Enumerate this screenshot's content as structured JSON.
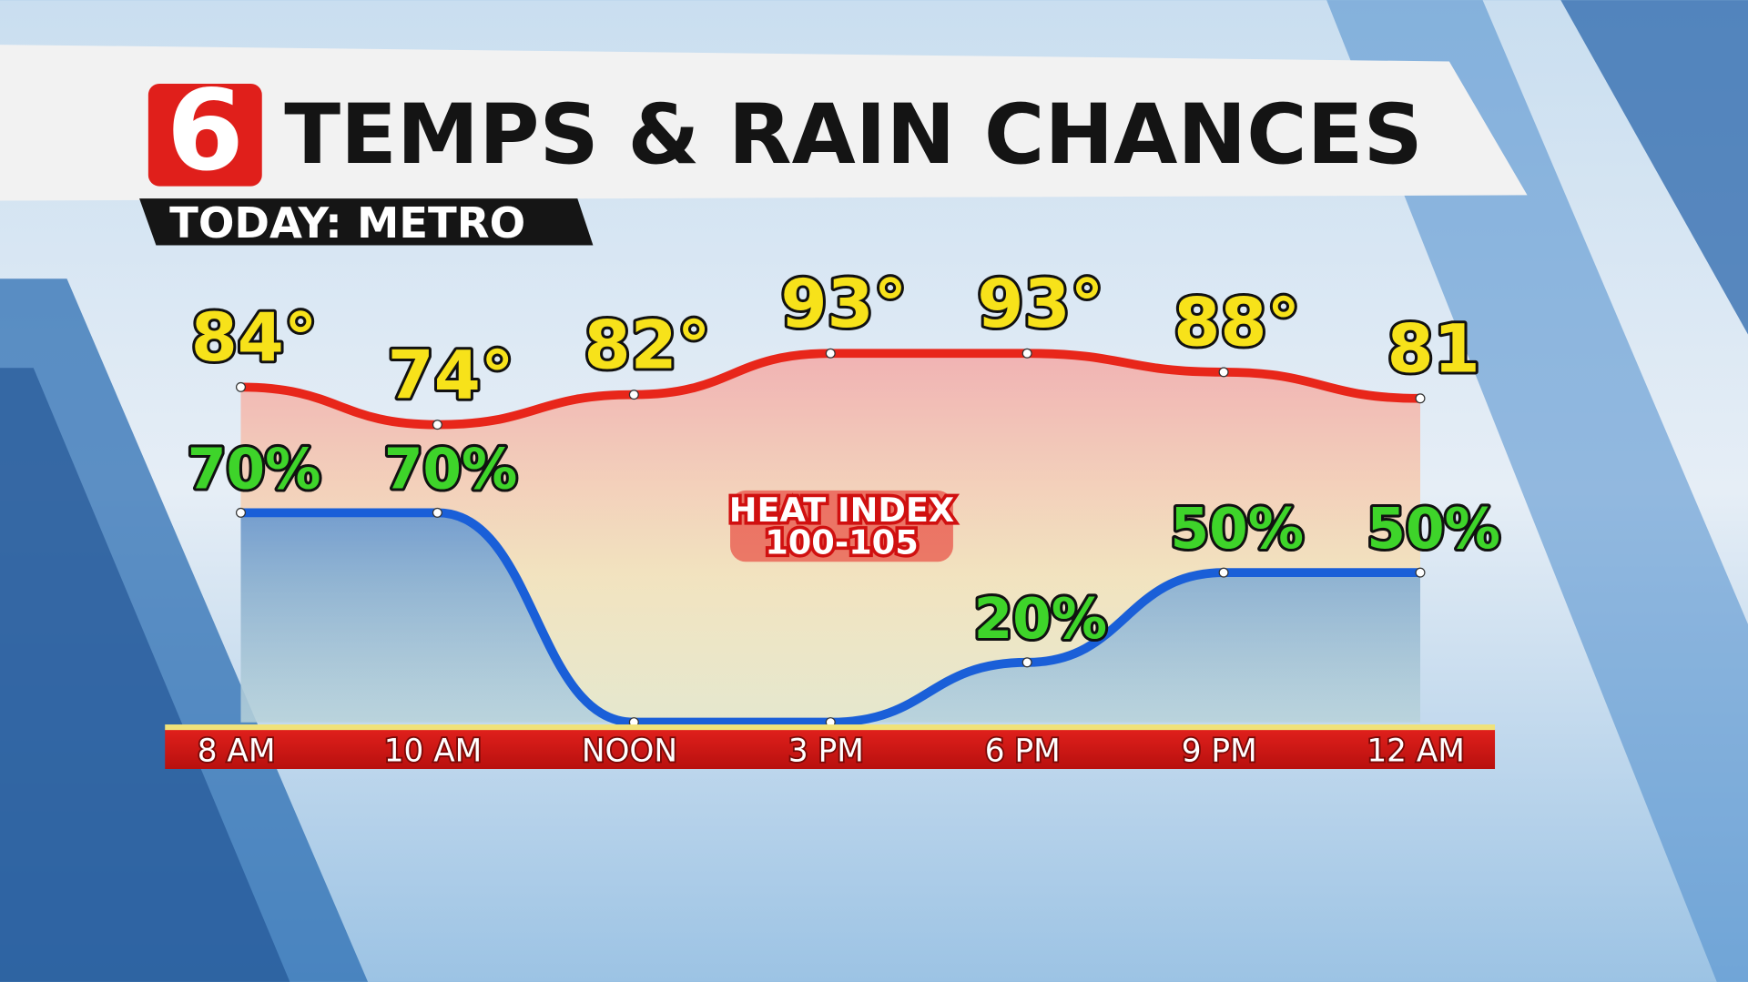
{
  "chart_data": {
    "type": "line",
    "logo": "6",
    "title": "TEMPS & RAIN CHANCES",
    "subtitle": "TODAY: METRO",
    "annotation": [
      "HEAT INDEX",
      "100-105"
    ],
    "categories": [
      "8 AM",
      "10 AM",
      "NOON",
      "3 PM",
      "6 PM",
      "9 PM",
      "12 AM"
    ],
    "series": [
      {
        "color": "#e8261a",
        "label_color": "#f7e21a",
        "values": [
          84,
          74,
          82,
          93,
          93,
          88,
          81
        ],
        "value_labels": [
          "84°",
          "74°",
          "82°",
          "93°",
          "93°",
          "88°",
          "81"
        ]
      },
      {
        "color": "#1a5fd8",
        "label_color": "#3ed42a",
        "values": [
          70,
          70,
          0,
          0,
          20,
          50,
          50
        ],
        "value_labels": [
          "70%",
          "70%",
          null,
          null,
          "20%",
          "50%",
          "50%"
        ]
      }
    ]
  }
}
